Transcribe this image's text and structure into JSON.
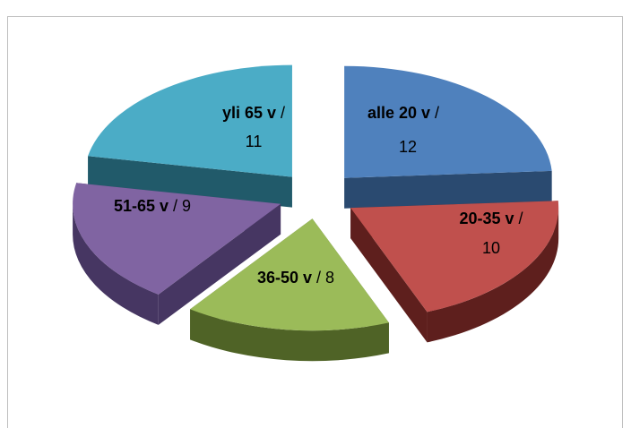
{
  "chart_data": {
    "type": "pie",
    "style": "3d-exploded",
    "categories": [
      "alle 20 v",
      "20-35 v",
      "36-50 v",
      "51-65 v",
      "yli 65 v"
    ],
    "values": [
      12,
      10,
      8,
      9,
      11
    ],
    "separator": "/",
    "colors": [
      "#4f81bd",
      "#c0504d",
      "#9bbb59",
      "#8064a2",
      "#4bacc6"
    ],
    "side_colors": [
      "#2a4a70",
      "#5e1f1d",
      "#4f6326",
      "#463662",
      "#215a6a"
    ],
    "legend": "none",
    "title": ""
  }
}
